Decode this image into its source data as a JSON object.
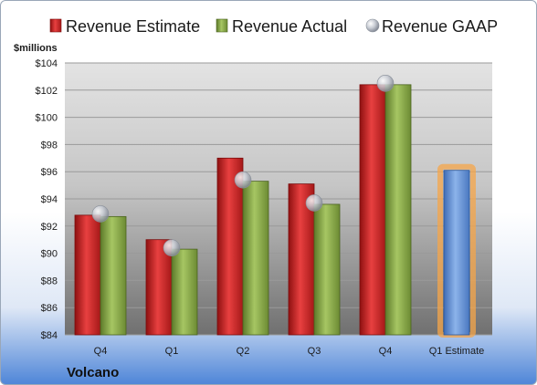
{
  "chart_data": {
    "type": "bar",
    "title": "",
    "xlabel": "",
    "ylabel": "$millions",
    "company": "Volcano",
    "ylim": [
      84,
      104
    ],
    "yticks": [
      "$84",
      "$86",
      "$88",
      "$90",
      "$92",
      "$94",
      "$96",
      "$98",
      "$100",
      "$102",
      "$104"
    ],
    "yticks_values": [
      84,
      86,
      88,
      90,
      92,
      94,
      96,
      98,
      100,
      102,
      104
    ],
    "grid": true,
    "legend_position": "top",
    "categories": [
      "Q4",
      "Q1",
      "Q2",
      "Q3",
      "Q4",
      "Q1 Estimate"
    ],
    "series": [
      {
        "name": "Revenue Estimate",
        "type": "bar",
        "color": "#d42a2a",
        "values": [
          92.8,
          91.0,
          97.0,
          95.1,
          102.4,
          null
        ]
      },
      {
        "name": "Revenue Actual",
        "type": "bar",
        "color": "#8fb04a",
        "values": [
          92.7,
          90.3,
          95.3,
          93.6,
          102.4,
          null
        ]
      },
      {
        "name": "Revenue GAAP",
        "type": "marker",
        "color": "#c8ccd4",
        "values": [
          92.9,
          90.4,
          95.4,
          93.7,
          102.5,
          null
        ]
      },
      {
        "name": "",
        "type": "bar",
        "color": "#6f9bd9",
        "highlight": "#f5a64a",
        "values": [
          null,
          null,
          null,
          null,
          null,
          96.1
        ]
      }
    ]
  }
}
